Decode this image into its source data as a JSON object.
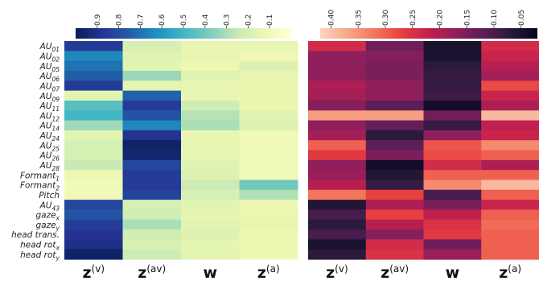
{
  "chart_data": {
    "type": "heatmap",
    "rows": [
      {
        "base": "AU",
        "sub": "01"
      },
      {
        "base": "AU",
        "sub": "02"
      },
      {
        "base": "AU",
        "sub": "05"
      },
      {
        "base": "AU",
        "sub": "06"
      },
      {
        "base": "AU",
        "sub": "07"
      },
      {
        "base": "AU",
        "sub": "09"
      },
      {
        "base": "AU",
        "sub": "11"
      },
      {
        "base": "AU",
        "sub": "12"
      },
      {
        "base": "AU",
        "sub": "14"
      },
      {
        "base": "AU",
        "sub": "24"
      },
      {
        "base": "AU",
        "sub": "25"
      },
      {
        "base": "AU",
        "sub": "26"
      },
      {
        "base": "AU",
        "sub": "28"
      },
      {
        "base": "Formant",
        "sub": "1"
      },
      {
        "base": "Formant",
        "sub": "2"
      },
      {
        "base": "Pitch",
        "sub": ""
      },
      {
        "base": "AU",
        "sub": "43"
      },
      {
        "base": "gaze",
        "sub": "x"
      },
      {
        "base": "gaze",
        "sub": "y"
      },
      {
        "base": "head trans.",
        "sub": ""
      },
      {
        "base": "head rot",
        "sub": "x"
      },
      {
        "base": "head rot",
        "sub": "y"
      }
    ],
    "columns": [
      {
        "base": "z",
        "sup": "(v)"
      },
      {
        "base": "z",
        "sup": "(av)"
      },
      {
        "base": "w",
        "sup": ""
      },
      {
        "base": "z",
        "sup": "(a)"
      }
    ],
    "panels": [
      {
        "colormap": "YlGnBu",
        "range": [
          0.0,
          1.0
        ],
        "ticks": [
          "0.9",
          "0.8",
          "0.7",
          "0.6",
          "0.5",
          "0.4",
          "0.3",
          "0.2",
          "0.1"
        ],
        "tick_values": [
          0.9,
          0.8,
          0.7,
          0.6,
          0.5,
          0.4,
          0.3,
          0.2,
          0.1
        ],
        "values": [
          [
            0.85,
            0.2,
            0.14,
            0.14
          ],
          [
            0.65,
            0.17,
            0.14,
            0.12
          ],
          [
            0.7,
            0.16,
            0.12,
            0.18
          ],
          [
            0.75,
            0.33,
            0.17,
            0.14
          ],
          [
            0.85,
            0.15,
            0.14,
            0.13
          ],
          [
            0.16,
            0.74,
            0.14,
            0.13
          ],
          [
            0.45,
            0.85,
            0.22,
            0.13
          ],
          [
            0.5,
            0.78,
            0.28,
            0.17
          ],
          [
            0.32,
            0.65,
            0.3,
            0.18
          ],
          [
            0.16,
            0.88,
            0.14,
            0.1
          ],
          [
            0.2,
            0.97,
            0.15,
            0.1
          ],
          [
            0.2,
            0.95,
            0.14,
            0.1
          ],
          [
            0.24,
            0.82,
            0.17,
            0.11
          ],
          [
            0.12,
            0.85,
            0.18,
            0.1
          ],
          [
            0.1,
            0.86,
            0.23,
            0.4
          ],
          [
            0.1,
            0.83,
            0.2,
            0.29
          ],
          [
            0.82,
            0.2,
            0.16,
            0.12
          ],
          [
            0.78,
            0.22,
            0.15,
            0.13
          ],
          [
            0.85,
            0.3,
            0.16,
            0.14
          ],
          [
            0.88,
            0.22,
            0.18,
            0.12
          ],
          [
            0.9,
            0.19,
            0.15,
            0.12
          ],
          [
            0.97,
            0.23,
            0.16,
            0.12
          ]
        ]
      },
      {
        "colormap": "rocket",
        "range": [
          0.02,
          0.42
        ],
        "ticks": [
          "0.40",
          "0.35",
          "0.30",
          "0.25",
          "0.20",
          "0.15",
          "0.10",
          "0.05"
        ],
        "tick_values": [
          0.4,
          0.35,
          0.3,
          0.25,
          0.2,
          0.15,
          0.1,
          0.05
        ],
        "values": [
          [
            0.24,
            0.14,
            0.05,
            0.24
          ],
          [
            0.17,
            0.16,
            0.05,
            0.23
          ],
          [
            0.17,
            0.15,
            0.07,
            0.21
          ],
          [
            0.17,
            0.15,
            0.08,
            0.19
          ],
          [
            0.2,
            0.17,
            0.08,
            0.28
          ],
          [
            0.19,
            0.17,
            0.09,
            0.23
          ],
          [
            0.16,
            0.12,
            0.04,
            0.2
          ],
          [
            0.36,
            0.36,
            0.14,
            0.39
          ],
          [
            0.17,
            0.13,
            0.08,
            0.22
          ],
          [
            0.19,
            0.07,
            0.17,
            0.23
          ],
          [
            0.3,
            0.12,
            0.29,
            0.34
          ],
          [
            0.26,
            0.15,
            0.28,
            0.3
          ],
          [
            0.17,
            0.04,
            0.24,
            0.2
          ],
          [
            0.18,
            0.06,
            0.3,
            0.3
          ],
          [
            0.21,
            0.08,
            0.34,
            0.39
          ],
          [
            0.32,
            0.27,
            0.1,
            0.3
          ],
          [
            0.06,
            0.2,
            0.15,
            0.23
          ],
          [
            0.1,
            0.27,
            0.22,
            0.3
          ],
          [
            0.07,
            0.21,
            0.25,
            0.31
          ],
          [
            0.1,
            0.16,
            0.26,
            0.3
          ],
          [
            0.05,
            0.24,
            0.14,
            0.3
          ],
          [
            0.07,
            0.25,
            0.18,
            0.3
          ]
        ]
      }
    ]
  }
}
